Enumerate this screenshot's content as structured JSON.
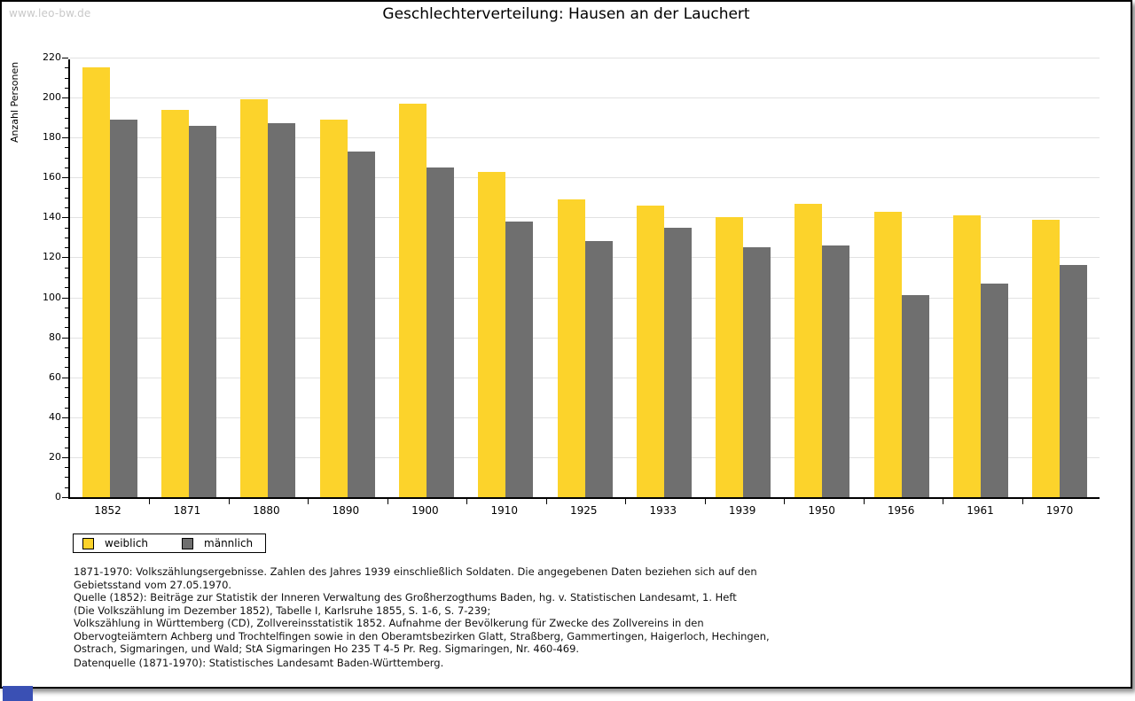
{
  "watermark": "www.leo-bw.de",
  "title": "Geschlechterverteilung: Hausen an der Lauchert",
  "chart_data": {
    "type": "bar",
    "title": "Geschlechterverteilung: Hausen an der Lauchert",
    "xlabel": "",
    "ylabel": "Anzahl Personen",
    "ylim": [
      0,
      220
    ],
    "ytick_step": 20,
    "ytick_minor_step": 5,
    "grid": true,
    "legend_position": "bottom-left",
    "categories": [
      "1852",
      "1871",
      "1880",
      "1890",
      "1900",
      "1910",
      "1925",
      "1933",
      "1939",
      "1950",
      "1956",
      "1961",
      "1970"
    ],
    "series": [
      {
        "name": "weiblich",
        "color": "#fcd32b",
        "values": [
          215,
          194,
          199,
          189,
          197,
          163,
          149,
          146,
          140,
          147,
          143,
          141,
          139
        ]
      },
      {
        "name": "männlich",
        "color": "#6f6f6f",
        "values": [
          189,
          186,
          187,
          173,
          165,
          138,
          128,
          135,
          125,
          126,
          101,
          107,
          116
        ]
      }
    ]
  },
  "legend": {
    "items": [
      {
        "label": "weiblich",
        "color": "#fcd32b"
      },
      {
        "label": "männlich",
        "color": "#6f6f6f"
      }
    ]
  },
  "footnotes": {
    "lines": [
      "1871-1970: Volkszählungsergebnisse. Zahlen des Jahres 1939 einschließlich Soldaten. Die angegebenen Daten beziehen sich auf den",
      "Gebietsstand vom 27.05.1970.",
      "Quelle (1852): Beiträge zur Statistik der Inneren Verwaltung des Großherzogthums Baden, hg. v. Statistischen Landesamt, 1. Heft",
      "(Die Volkszählung im Dezember 1852), Tabelle I, Karlsruhe 1855, S. 1-6, S. 7-239;",
      "Volkszählung in Württemberg (CD), Zollvereinsstatistik 1852. Aufnahme der Bevölkerung für Zwecke des Zollvereins in den",
      "Obervogteiämtern Achberg und Trochtelfingen sowie in den Oberamtsbezirken Glatt, Straßberg, Gammertingen, Haigerloch, Hechingen,",
      "Ostrach, Sigmaringen, und Wald; StA Sigmaringen Ho 235 T 4-5 Pr. Reg. Sigmaringen, Nr. 460-469."
    ],
    "datasource": "Datenquelle (1871-1970): Statistisches Landesamt Baden-Württemberg."
  }
}
